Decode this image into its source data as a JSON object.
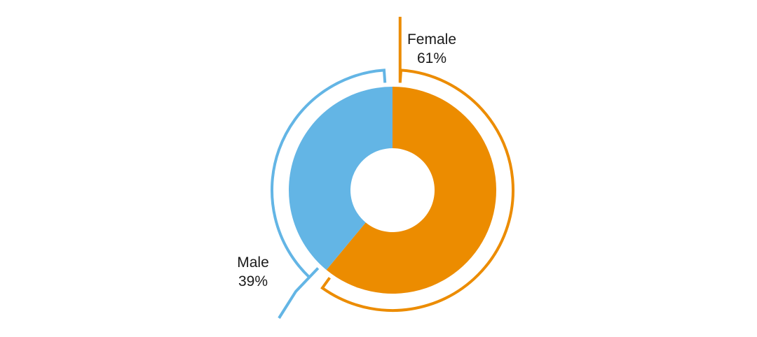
{
  "chart_data": {
    "type": "pie",
    "style": "donut",
    "legend": "none",
    "slices": [
      {
        "label": "Female",
        "value": 61,
        "value_label": "61%",
        "color": "#ec8c00"
      },
      {
        "label": "Male",
        "value": 39,
        "value_label": "39%",
        "color": "#63b5e5"
      }
    ]
  }
}
